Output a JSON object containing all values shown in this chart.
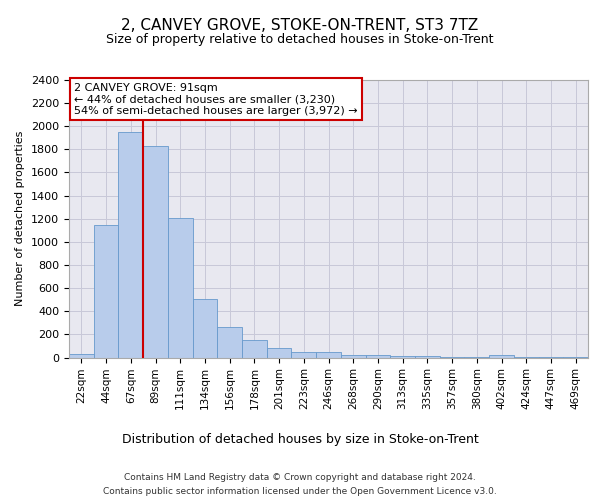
{
  "title": "2, CANVEY GROVE, STOKE-ON-TRENT, ST3 7TZ",
  "subtitle": "Size of property relative to detached houses in Stoke-on-Trent",
  "xlabel": "Distribution of detached houses by size in Stoke-on-Trent",
  "ylabel": "Number of detached properties",
  "categories": [
    "22sqm",
    "44sqm",
    "67sqm",
    "89sqm",
    "111sqm",
    "134sqm",
    "156sqm",
    "178sqm",
    "201sqm",
    "223sqm",
    "246sqm",
    "268sqm",
    "290sqm",
    "313sqm",
    "335sqm",
    "357sqm",
    "380sqm",
    "402sqm",
    "424sqm",
    "447sqm",
    "469sqm"
  ],
  "values": [
    30,
    1150,
    1950,
    1830,
    1210,
    510,
    265,
    155,
    80,
    50,
    45,
    22,
    20,
    12,
    10,
    8,
    5,
    20,
    3,
    2,
    2
  ],
  "bar_color": "#b8cceb",
  "bar_edge_color": "#6699cc",
  "property_bar_index": 3,
  "vline_x": 3.0,
  "vline_color": "#cc0000",
  "annotation_text": "2 CANVEY GROVE: 91sqm\n← 44% of detached houses are smaller (3,230)\n54% of semi-detached houses are larger (3,972) →",
  "annotation_box_color": "#ffffff",
  "annotation_box_edge": "#cc0000",
  "ylim": [
    0,
    2400
  ],
  "yticks": [
    0,
    200,
    400,
    600,
    800,
    1000,
    1200,
    1400,
    1600,
    1800,
    2000,
    2200,
    2400
  ],
  "footer_line1": "Contains HM Land Registry data © Crown copyright and database right 2024.",
  "footer_line2": "Contains public sector information licensed under the Open Government Licence v3.0.",
  "background_color": "#e8e8f0",
  "plot_background": "#ffffff",
  "grid_color": "#c8c8d8",
  "title_fontsize": 11,
  "subtitle_fontsize": 9,
  "ylabel_fontsize": 8,
  "xlabel_fontsize": 9,
  "tick_fontsize": 8,
  "xtick_fontsize": 7.5,
  "footer_fontsize": 6.5,
  "annotation_fontsize": 8
}
